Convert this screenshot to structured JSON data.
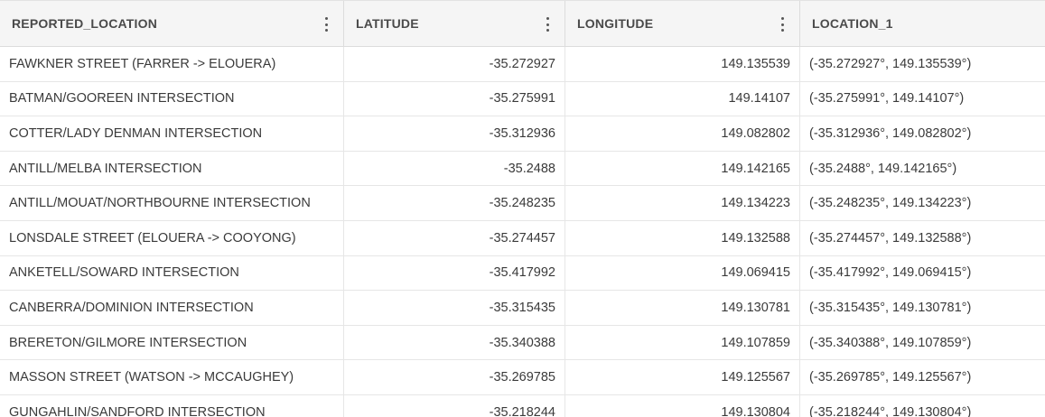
{
  "columns": [
    {
      "label": "REPORTED_LOCATION"
    },
    {
      "label": "LATITUDE"
    },
    {
      "label": "LONGITUDE"
    },
    {
      "label": "LOCATION_1"
    }
  ],
  "rows": [
    {
      "reported_location": "FAWKNER STREET (FARRER -> ELOUERA)",
      "latitude": "-35.272927",
      "longitude": "149.135539",
      "location_1": "(-35.272927°, 149.135539°)"
    },
    {
      "reported_location": "BATMAN/GOOREEN INTERSECTION",
      "latitude": "-35.275991",
      "longitude": "149.14107",
      "location_1": "(-35.275991°, 149.14107°)"
    },
    {
      "reported_location": "COTTER/LADY DENMAN INTERSECTION",
      "latitude": "-35.312936",
      "longitude": "149.082802",
      "location_1": "(-35.312936°, 149.082802°)"
    },
    {
      "reported_location": "ANTILL/MELBA INTERSECTION",
      "latitude": "-35.2488",
      "longitude": "149.142165",
      "location_1": "(-35.2488°, 149.142165°)"
    },
    {
      "reported_location": "ANTILL/MOUAT/NORTHBOURNE INTERSECTION",
      "latitude": "-35.248235",
      "longitude": "149.134223",
      "location_1": "(-35.248235°, 149.134223°)"
    },
    {
      "reported_location": "LONSDALE STREET (ELOUERA -> COOYONG)",
      "latitude": "-35.274457",
      "longitude": "149.132588",
      "location_1": "(-35.274457°, 149.132588°)"
    },
    {
      "reported_location": "ANKETELL/SOWARD INTERSECTION",
      "latitude": "-35.417992",
      "longitude": "149.069415",
      "location_1": "(-35.417992°, 149.069415°)"
    },
    {
      "reported_location": "CANBERRA/DOMINION INTERSECTION",
      "latitude": "-35.315435",
      "longitude": "149.130781",
      "location_1": "(-35.315435°, 149.130781°)"
    },
    {
      "reported_location": "BRERETON/GILMORE INTERSECTION",
      "latitude": "-35.340388",
      "longitude": "149.107859",
      "location_1": "(-35.340388°, 149.107859°)"
    },
    {
      "reported_location": "MASSON STREET (WATSON -> MCCAUGHEY)",
      "latitude": "-35.269785",
      "longitude": "149.125567",
      "location_1": "(-35.269785°, 149.125567°)"
    },
    {
      "reported_location": "GUNGAHLIN/SANDFORD INTERSECTION",
      "latitude": "-35.218244",
      "longitude": "149.130804",
      "location_1": "(-35.218244°, 149.130804°)"
    }
  ],
  "icons": {
    "column_menu": "kebab-menu-icon"
  }
}
